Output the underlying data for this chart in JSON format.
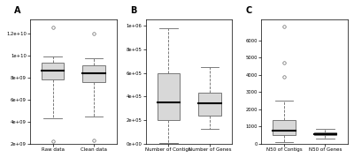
{
  "panel_A": {
    "label": "A",
    "categories": [
      "Raw data",
      "Clean data"
    ],
    "box1": {
      "whislo": 4300000000.0,
      "q1": 7800000000.0,
      "med": 8600000000.0,
      "q3": 9300000000.0,
      "whishi": 9850000000.0,
      "fliers_low": [
        2200000000.0
      ],
      "fliers_high": [
        12500000000.0
      ]
    },
    "box2": {
      "whislo": 4500000000.0,
      "q1": 7600000000.0,
      "med": 8400000000.0,
      "q3": 9100000000.0,
      "whishi": 9700000000.0,
      "fliers_low": [
        2300000000.0
      ],
      "fliers_high": [
        12000000000.0
      ]
    },
    "ylim": [
      2000000000.0,
      13200000000.0
    ],
    "yticks": [
      2000000000.0,
      4000000000.0,
      6000000000.0,
      8000000000.0,
      10000000000.0,
      12000000000.0
    ],
    "ytick_labels": [
      "2e+09",
      "4e+09",
      "6e+09",
      "8e+09",
      "1e+10",
      "1.2e+10"
    ]
  },
  "panel_B": {
    "label": "B",
    "categories": [
      "Number of Contigs",
      "Number of Genes"
    ],
    "box1": {
      "whislo": 3000,
      "q1": 200000.0,
      "med": 350000.0,
      "q3": 600000.0,
      "whishi": 980000.0,
      "fliers_low": [],
      "fliers_high": []
    },
    "box2": {
      "whislo": 130000.0,
      "q1": 240000.0,
      "med": 340000.0,
      "q3": 430000.0,
      "whishi": 650000.0,
      "fliers_low": [],
      "fliers_high": []
    },
    "ylim": [
      0,
      1050000.0
    ],
    "yticks": [
      0,
      200000.0,
      400000.0,
      600000.0,
      800000.0,
      1000000.0
    ],
    "ytick_labels": [
      "0e+00",
      "2e+05",
      "4e+05",
      "6e+05",
      "8e+05",
      "1e+06"
    ]
  },
  "panel_C": {
    "label": "C",
    "categories": [
      "N50 of Contigs",
      "N50 of Genes"
    ],
    "box1": {
      "whislo": 100,
      "q1": 500,
      "med": 750,
      "q3": 1400,
      "whishi": 2500,
      "fliers_low": [],
      "fliers_high": [
        3900,
        4700,
        6800
      ]
    },
    "box2": {
      "whislo": 300,
      "q1": 490,
      "med": 570,
      "q3": 660,
      "whishi": 850,
      "fliers_low": [],
      "fliers_high": []
    },
    "ylim": [
      0,
      7200
    ],
    "yticks": [
      0,
      1000,
      2000,
      3000,
      4000,
      5000,
      6000
    ],
    "ytick_labels": [
      "0",
      "1000",
      "2000",
      "3000",
      "4000",
      "5000",
      "6000"
    ]
  },
  "box_facecolor": "#d8d8d8",
  "box_edgecolor": "#666666",
  "median_color": "black",
  "flier_marker": "o",
  "flier_size": 2.5,
  "bg_color": "white"
}
